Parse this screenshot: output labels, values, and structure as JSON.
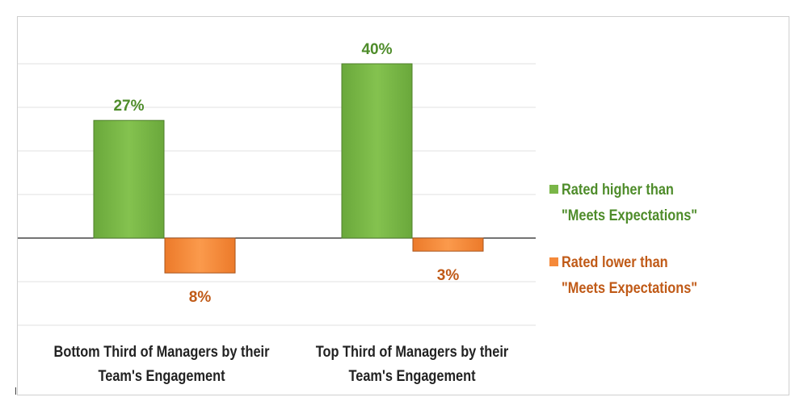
{
  "chart_data": {
    "type": "bar",
    "categories": [
      "Bottom Third of Managers by their\nTeam's Engagement",
      "Top Third of Managers by their\nTeam's Engagement"
    ],
    "series": [
      {
        "name": "Rated higher than\n\"Meets Expectations\"",
        "values": [
          27,
          40
        ],
        "labels": [
          "27%",
          "40%"
        ],
        "color": "#7ab648",
        "label_color": "#4e8c2a"
      },
      {
        "name": "Rated lower than\n\"Meets Expectations\"",
        "values": [
          -8,
          -3
        ],
        "labels": [
          "8%",
          "3%"
        ],
        "color": "#f5893a",
        "label_color": "#c05a17"
      }
    ],
    "title": "",
    "xlabel": "",
    "ylabel": "",
    "ylim": [
      -20,
      45
    ],
    "grid": true,
    "legend_position": "right"
  }
}
